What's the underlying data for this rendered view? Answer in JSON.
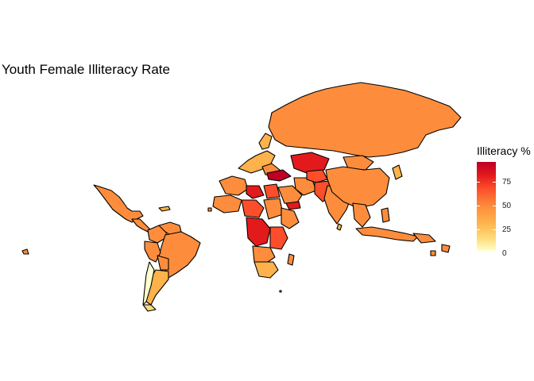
{
  "title": "Youth Female Illiteracy Rate",
  "legend": {
    "title": "Illiteracy %",
    "ticks": [
      "75",
      "50",
      "25",
      "0"
    ],
    "colors": {
      "low": "#ffffcc",
      "mid_low": "#fed976",
      "mid": "#fd8d3c",
      "high": "#e31a1c",
      "max": "#bd0026"
    }
  },
  "chart_data": {
    "type": "choropleth",
    "title": "Youth Female Illiteracy Rate",
    "legend_title": "Illiteracy %",
    "scale_range": [
      0,
      95
    ],
    "legend_ticks": [
      0,
      25,
      50,
      75
    ],
    "legend_placement": "right"
  }
}
